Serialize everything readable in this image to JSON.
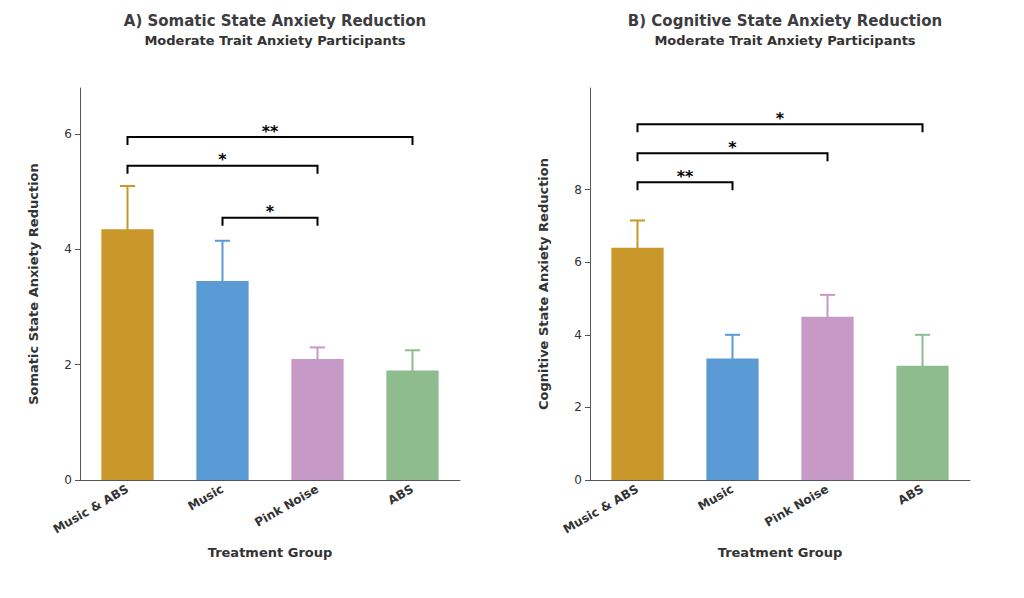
{
  "chart_data": [
    {
      "type": "bar",
      "title": "A) Somatic State Anxiety Reduction",
      "subtitle": "Moderate Trait Anxiety Participants",
      "xlabel": "Treatment Group",
      "ylabel": "Somatic State Anxiety Reduction",
      "categories": [
        "Music & ABS",
        "Music",
        "Pink Noise",
        "ABS"
      ],
      "values": [
        4.35,
        3.45,
        2.1,
        1.9
      ],
      "errors": [
        0.75,
        0.7,
        0.2,
        0.35
      ],
      "colors": [
        "#C9962A",
        "#5B9BD5",
        "#C799C7",
        "#8FBC8F"
      ],
      "ylim": [
        0,
        6.8
      ],
      "yticks": [
        0,
        2,
        4,
        6
      ],
      "grid": false,
      "annotations": [
        {
          "x1": "Music & ABS",
          "x2": "Pink Noise",
          "y": 5.45,
          "label": "*"
        },
        {
          "x1": "Music & ABS",
          "x2": "ABS",
          "y": 5.95,
          "label": "**"
        },
        {
          "x1": "Music",
          "x2": "Pink Noise",
          "y": 4.55,
          "label": "*"
        }
      ]
    },
    {
      "type": "bar",
      "title": "B) Cognitive State Anxiety Reduction",
      "subtitle": "Moderate Trait Anxiety Participants",
      "xlabel": "Treatment Group",
      "ylabel": "Cognitive State Anxiety Reduction",
      "categories": [
        "Music & ABS",
        "Music",
        "Pink Noise",
        "ABS"
      ],
      "values": [
        6.4,
        3.35,
        4.5,
        3.15
      ],
      "errors": [
        0.75,
        0.65,
        0.6,
        0.85
      ],
      "colors": [
        "#C9962A",
        "#5B9BD5",
        "#C799C7",
        "#8FBC8F"
      ],
      "ylim": [
        0,
        10.8
      ],
      "yticks": [
        0,
        2,
        4,
        6,
        8
      ],
      "grid": false,
      "annotations": [
        {
          "x1": "Music & ABS",
          "x2": "Music",
          "y": 8.2,
          "label": "**"
        },
        {
          "x1": "Music & ABS",
          "x2": "Pink Noise",
          "y": 9.0,
          "label": "*"
        },
        {
          "x1": "Music & ABS",
          "x2": "ABS",
          "y": 9.8,
          "label": "*"
        }
      ]
    }
  ]
}
